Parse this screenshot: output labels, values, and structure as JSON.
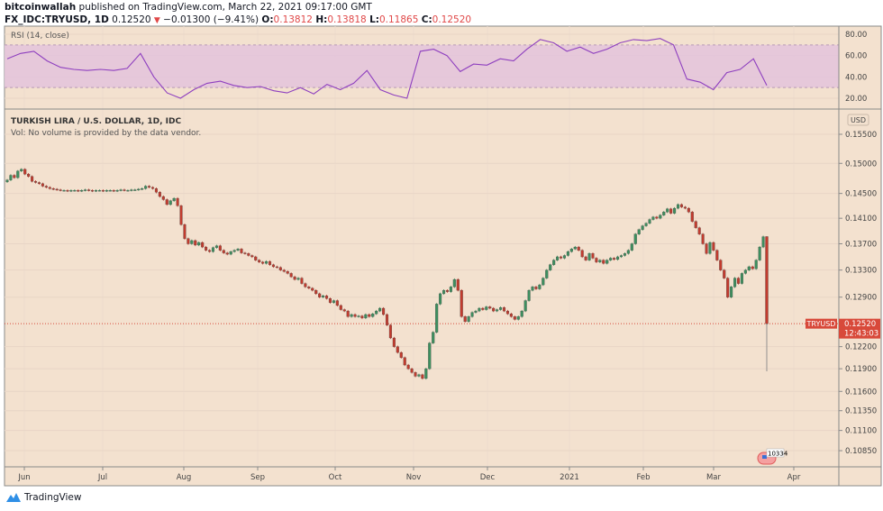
{
  "header": {
    "author": "bitcoinwallah",
    "published": "published on TradingView.com, March 22, 2021 09:17:00 GMT",
    "symbol": "FX_IDC:TRYUSD, 1D",
    "last": "0.12520",
    "change": "−0.01300 (−9.41%)",
    "o_label": "O:",
    "o": "0.13812",
    "h_label": "H:",
    "h": "0.13818",
    "l_label": "L:",
    "l": "0.11865",
    "c_label": "C:",
    "c": "0.12520",
    "direction_icon": "triangle-down-icon"
  },
  "rsi_pane": {
    "label": "RSI (14, close)",
    "ticks": [
      "80.00",
      "60.00",
      "40.00",
      "20.00"
    ],
    "band": [
      30,
      70
    ],
    "line_color": "#8e3fbf",
    "band_color": "#e0bfe0"
  },
  "price_pane": {
    "title": "TURKISH LIRA / U.S. DOLLAR, 1D, IDC",
    "volume_note": "Vol: No volume is provided by the data vendor.",
    "currency": "USD",
    "ticks": [
      "0.15500",
      "0.15000",
      "0.14500",
      "0.14100",
      "0.13700",
      "0.13300",
      "0.12900",
      "0.12200",
      "0.11900",
      "0.11600",
      "0.11350",
      "0.11100",
      "0.10850"
    ],
    "last_label": "TRYUSD",
    "last_price": "0.12520",
    "countdown": "12:43:03",
    "badge_text": "10334",
    "badge_icon": "us-flag-icon"
  },
  "time_axis": [
    "Jun",
    "Jul",
    "Aug",
    "Sep",
    "Oct",
    "Nov",
    "Dec",
    "2021",
    "Feb",
    "Mar",
    "Apr"
  ],
  "footer": {
    "brand": "TradingView",
    "logo_icon": "tradingview-logo-icon"
  },
  "colors": {
    "up": "#3d8f5f",
    "down": "#c23b2e",
    "background": "#f3e1cf",
    "last_price": "#d8493a"
  },
  "chart_data": [
    {
      "type": "candlestick",
      "title": "TURKISH LIRA / U.S. DOLLAR, 1D, IDC",
      "ylabel": "USD",
      "yscale": "log",
      "ylim": [
        0.1065,
        0.158
      ],
      "x_range": [
        "late May 2020",
        "2021-03-22"
      ],
      "grid": true,
      "closes": [
        0.1472,
        0.148,
        0.1476,
        0.1487,
        0.149,
        0.1482,
        0.1478,
        0.147,
        0.1468,
        0.1466,
        0.1462,
        0.146,
        0.1458,
        0.1457,
        0.1456,
        0.1455,
        0.1455,
        0.1454,
        0.1455,
        0.1455,
        0.1454,
        0.1455,
        0.1456,
        0.1455,
        0.1454,
        0.1455,
        0.1455,
        0.1454,
        0.1455,
        0.1455,
        0.1454,
        0.1455,
        0.1456,
        0.1455,
        0.1455,
        0.1456,
        0.1456,
        0.1457,
        0.1458,
        0.1462,
        0.146,
        0.1458,
        0.1452,
        0.1445,
        0.144,
        0.1432,
        0.1438,
        0.1442,
        0.143,
        0.14,
        0.1378,
        0.137,
        0.1375,
        0.1368,
        0.1372,
        0.1365,
        0.136,
        0.1358,
        0.1364,
        0.1367,
        0.136,
        0.1356,
        0.1354,
        0.1358,
        0.136,
        0.1362,
        0.1356,
        0.1355,
        0.1352,
        0.135,
        0.1345,
        0.1342,
        0.134,
        0.1343,
        0.1338,
        0.1335,
        0.1334,
        0.133,
        0.1328,
        0.1325,
        0.132,
        0.1316,
        0.1318,
        0.131,
        0.1305,
        0.1303,
        0.13,
        0.1295,
        0.129,
        0.1292,
        0.1288,
        0.1282,
        0.1285,
        0.1278,
        0.1272,
        0.127,
        0.1262,
        0.1265,
        0.1262,
        0.1263,
        0.126,
        0.1265,
        0.1262,
        0.1266,
        0.127,
        0.1274,
        0.1265,
        0.125,
        0.1232,
        0.122,
        0.1212,
        0.1205,
        0.1195,
        0.119,
        0.1185,
        0.118,
        0.1182,
        0.1177,
        0.119,
        0.1225,
        0.124,
        0.128,
        0.1295,
        0.13,
        0.1298,
        0.1305,
        0.1316,
        0.13,
        0.1262,
        0.1255,
        0.1262,
        0.1268,
        0.127,
        0.1274,
        0.1272,
        0.1276,
        0.1274,
        0.127,
        0.1272,
        0.1275,
        0.127,
        0.1266,
        0.1262,
        0.1258,
        0.1262,
        0.127,
        0.1285,
        0.13,
        0.1305,
        0.1302,
        0.1308,
        0.1318,
        0.133,
        0.1338,
        0.1345,
        0.135,
        0.1348,
        0.1352,
        0.1358,
        0.1362,
        0.1365,
        0.136,
        0.135,
        0.1345,
        0.1355,
        0.1348,
        0.1342,
        0.1345,
        0.134,
        0.1345,
        0.1348,
        0.1346,
        0.135,
        0.1352,
        0.1355,
        0.136,
        0.137,
        0.1385,
        0.1392,
        0.1398,
        0.1402,
        0.1408,
        0.1412,
        0.141,
        0.1415,
        0.142,
        0.1425,
        0.1418,
        0.1426,
        0.1432,
        0.1428,
        0.1426,
        0.142,
        0.1405,
        0.1395,
        0.1385,
        0.137,
        0.1355,
        0.1372,
        0.136,
        0.1345,
        0.133,
        0.1318,
        0.129,
        0.1305,
        0.1318,
        0.131,
        0.1325,
        0.133,
        0.1335,
        0.1332,
        0.1345,
        0.1365,
        0.1381
      ],
      "last_candle": {
        "open": 0.13812,
        "high": 0.13818,
        "low": 0.11865,
        "close": 0.1252
      }
    },
    {
      "type": "line",
      "title": "RSI (14, close)",
      "ylim": [
        12,
        86
      ],
      "values": [
        57,
        62,
        64,
        55,
        49,
        47,
        46,
        47,
        46,
        48,
        62,
        40,
        25,
        20,
        28,
        34,
        36,
        32,
        30,
        31,
        27,
        25,
        30,
        24,
        33,
        28,
        34,
        46,
        28,
        23,
        20,
        64,
        66,
        60,
        45,
        52,
        51,
        57,
        55,
        66,
        75,
        72,
        64,
        68,
        62,
        66,
        72,
        75,
        74,
        76,
        70,
        38,
        35,
        28,
        44,
        47,
        57,
        32
      ]
    }
  ]
}
